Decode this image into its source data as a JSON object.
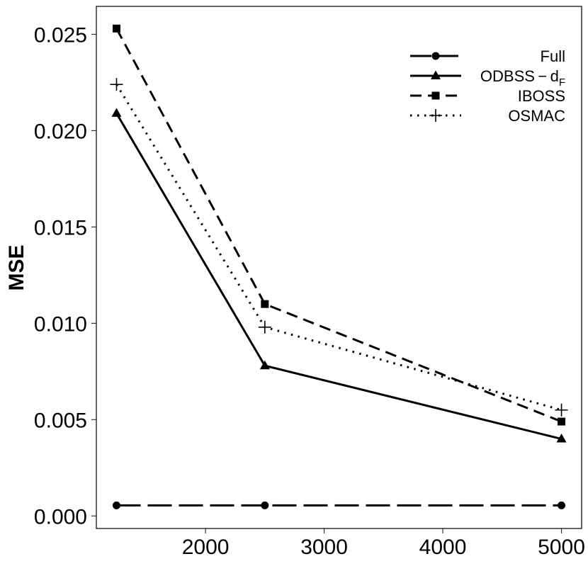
{
  "chart_data": {
    "type": "line",
    "title": "",
    "xlabel": "",
    "ylabel": "MSE",
    "xlim": [
      1080,
      5170
    ],
    "ylim": [
      -0.00065,
      0.02645
    ],
    "xticks": [
      2000,
      3000,
      4000,
      5000
    ],
    "xtick_labels": [
      "2000",
      "3000",
      "4000",
      "5000"
    ],
    "yticks": [
      0.0,
      0.005,
      0.01,
      0.015,
      0.02,
      0.025
    ],
    "ytick_labels": [
      "0.000",
      "0.005",
      "0.010",
      "0.015",
      "0.020",
      "0.025"
    ],
    "grid": false,
    "legend_position": "top-right",
    "x": [
      1250,
      2500,
      5000
    ],
    "series": [
      {
        "name": "Full",
        "legend_label": "Full",
        "values": [
          0.00055,
          0.00055,
          0.00055
        ],
        "line_style": "longdash",
        "marker": "circle",
        "color": "#000000"
      },
      {
        "name": "ODBSS-dF",
        "legend_label": "ODBSS − d",
        "legend_subscript": "F",
        "values": [
          0.0209,
          0.0078,
          0.004
        ],
        "line_style": "solid",
        "marker": "triangle",
        "color": "#000000"
      },
      {
        "name": "IBOSS",
        "legend_label": "IBOSS",
        "values": [
          0.0253,
          0.011,
          0.0049
        ],
        "line_style": "dashed",
        "marker": "square",
        "color": "#000000"
      },
      {
        "name": "OSMAC",
        "legend_label": "OSMAC",
        "values": [
          0.0224,
          0.0098,
          0.0055
        ],
        "line_style": "dotted",
        "marker": "plus",
        "color": "#000000"
      }
    ]
  }
}
